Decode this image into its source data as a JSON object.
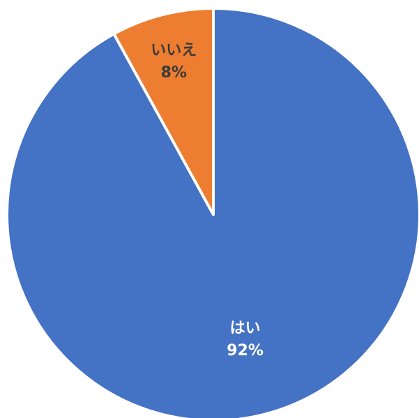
{
  "chart_data": {
    "type": "pie",
    "title": "",
    "start": "top",
    "direction": "clockwise",
    "slices": [
      {
        "label": "はい",
        "value": 92,
        "value_label": "92%",
        "color": "#4472C4",
        "label_color": "#ffffff"
      },
      {
        "label": "いいえ",
        "value": 8,
        "value_label": "8%",
        "color": "#ED7D31",
        "label_color": "#3a3a3a"
      }
    ]
  }
}
